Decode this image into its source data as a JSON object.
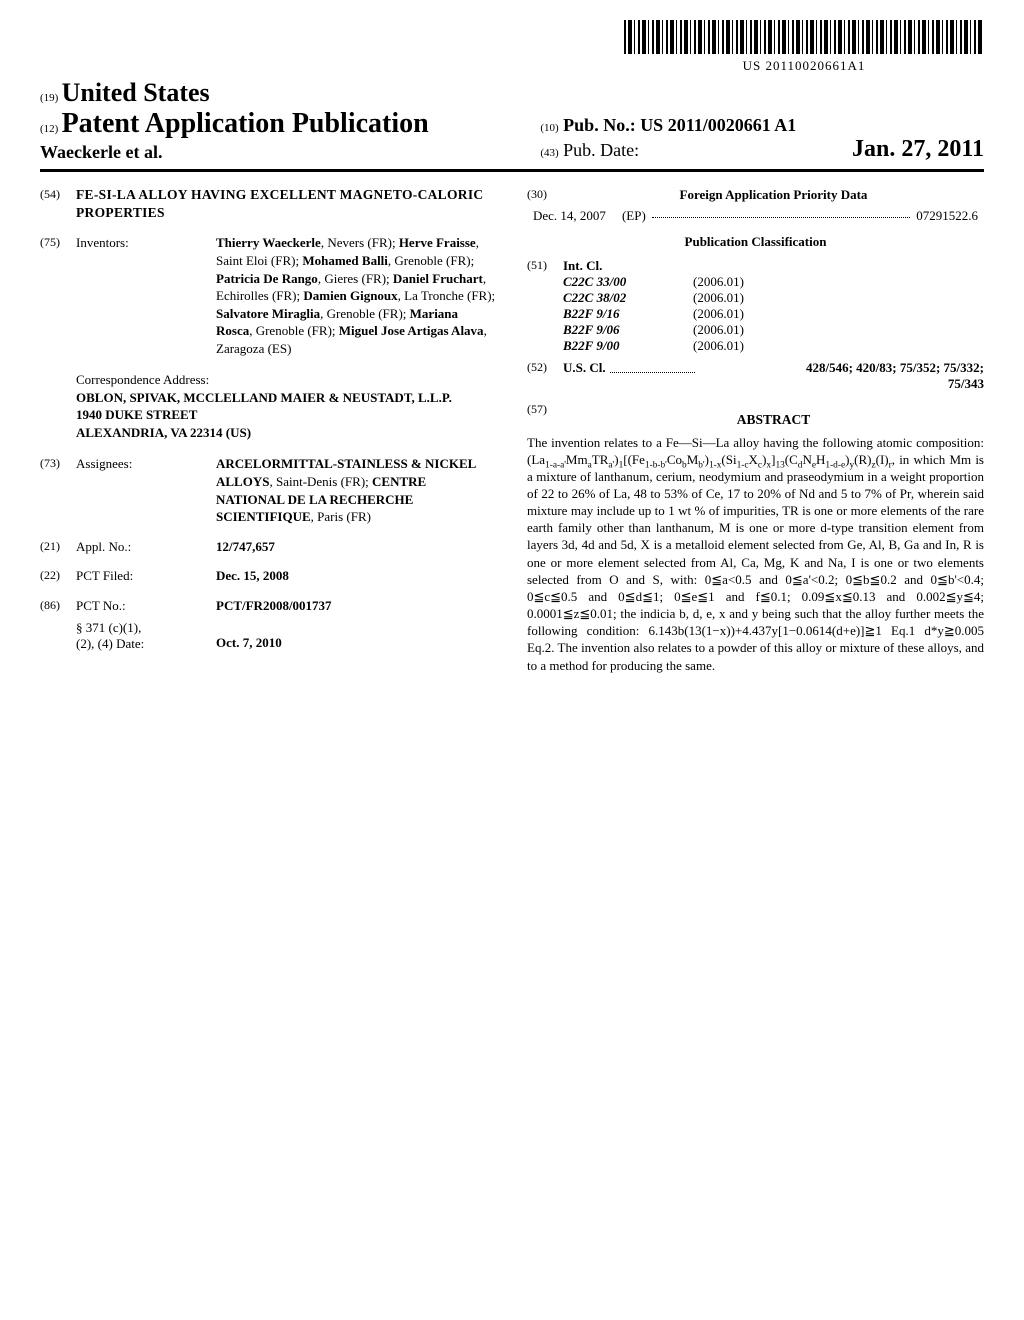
{
  "barcode_number": "US 20110020661A1",
  "header": {
    "num19": "(19)",
    "country": "United States",
    "num12": "(12)",
    "pub_type": "Patent Application Publication",
    "authors": "Waeckerle et al.",
    "num10": "(10)",
    "pubno_label": "Pub. No.:",
    "pubno": "US 2011/0020661 A1",
    "num43": "(43)",
    "pubdate_label": "Pub. Date:",
    "pubdate": "Jan. 27, 2011"
  },
  "left": {
    "num54": "(54)",
    "title": "FE-SI-LA ALLOY HAVING EXCELLENT MAGNETO-CALORIC PROPERTIES",
    "num75": "(75)",
    "inventors_label": "Inventors:",
    "inventors": [
      {
        "name": "Thierry Waeckerle",
        "loc": ", Nevers (FR); "
      },
      {
        "name": "Herve Fraisse",
        "loc": ", Saint Eloi (FR); "
      },
      {
        "name": "Mohamed Balli",
        "loc": ", Grenoble (FR); "
      },
      {
        "name": "Patricia De Rango",
        "loc": ", Gieres (FR); "
      },
      {
        "name": "Daniel Fruchart",
        "loc": ", Echirolles (FR); "
      },
      {
        "name": "Damien Gignoux",
        "loc": ", La Tronche (FR); "
      },
      {
        "name": "Salvatore Miraglia",
        "loc": ", Grenoble (FR); "
      },
      {
        "name": "Mariana Rosca",
        "loc": ", Grenoble (FR); "
      },
      {
        "name": "Miguel Jose Artigas Alava",
        "loc": ", Zaragoza (ES)"
      }
    ],
    "corr_label": "Correspondence Address:",
    "corr_name": "OBLON, SPIVAK, MCCLELLAND MAIER & NEUSTADT, L.L.P.",
    "corr_street": "1940 DUKE STREET",
    "corr_city": "ALEXANDRIA, VA 22314 (US)",
    "num73": "(73)",
    "assignees_label": "Assignees:",
    "assignee1": "ARCELORMITTAL-STAINLESS & NICKEL ALLOYS",
    "assignee1_loc": ", Saint-Denis (FR); ",
    "assignee2": "CENTRE NATIONAL DE LA RECHERCHE SCIENTIFIQUE",
    "assignee2_loc": ", Paris (FR)",
    "num21": "(21)",
    "appl_label": "Appl. No.:",
    "appl_no": "12/747,657",
    "num22": "(22)",
    "pct_filed_label": "PCT Filed:",
    "pct_filed": "Dec. 15, 2008",
    "num86": "(86)",
    "pct_no_label": "PCT No.:",
    "pct_no": "PCT/FR2008/001737",
    "s371_label": "§ 371 (c)(1),",
    "s371_date_label": "(2), (4) Date:",
    "s371_date": "Oct. 7, 2010"
  },
  "right": {
    "num30": "(30)",
    "foreign_title": "Foreign Application Priority Data",
    "foreign_date": "Dec. 14, 2007",
    "foreign_country": "(EP)",
    "foreign_app": "07291522.6",
    "pubclass_title": "Publication Classification",
    "num51": "(51)",
    "intcl_label": "Int. Cl.",
    "intcl": [
      {
        "code": "C22C 33/00",
        "ver": "(2006.01)"
      },
      {
        "code": "C22C 38/02",
        "ver": "(2006.01)"
      },
      {
        "code": "B22F 9/16",
        "ver": "(2006.01)"
      },
      {
        "code": "B22F 9/06",
        "ver": "(2006.01)"
      },
      {
        "code": "B22F 9/00",
        "ver": "(2006.01)"
      }
    ],
    "num52": "(52)",
    "uscl_label": "U.S. Cl.",
    "uscl_codes": "428/546; 420/83; 75/352; 75/332;",
    "uscl_codes2": "75/343",
    "num57": "(57)",
    "abstract_label": "ABSTRACT"
  },
  "abstract_html": "The invention relates to a Fe—Si—La alloy having the following atomic composition: (La<sub>1-a-a'</sub>Mm<sub>a</sub>TR<sub>a'</sub>)<sub>1</sub>[(Fe<sub>1-b-b'</sub>Co<sub>b</sub>M<sub>b'</sub>)<sub>1-x</sub>(Si<sub>1-c</sub>X<sub>c</sub>)<sub>x</sub>]<sub>13</sub>(C<sub>d</sub>N<sub>e</sub>H<sub>1-d-e</sub>)<sub>y</sub>(R)<sub>z</sub>(I)<sub>r</sub>, in which Mm is a mixture of lanthanum, cerium, neodymium and praseodymium in a weight proportion of 22 to 26% of La, 48 to 53% of Ce, 17 to 20% of Nd and 5 to 7% of Pr, wherein said mixture may include up to 1 wt % of impurities, TR is one or more elements of the rare earth family other than lanthanum, M is one or more d-type transition element from layers 3d, 4d and 5d, X is a metalloid element selected from Ge, Al, B, Ga and In, R is one or more element selected from Al, Ca, Mg, K and Na, I is one or two elements selected from O and S, with: 0≦a&lt;0.5 and 0≦a'&lt;0.2; 0≦b≦0.2 and 0≦b'&lt;0.4; 0≦c≦0.5 and 0≦d≦1; 0≦e≦1 and f≦0.1; 0.09≦x≦0.13 and 0.002≦y≦4; 0.0001≦z≦0.01; the indicia b, d, e, x and y being such that the alloy further meets the following condition: 6.143b(13(1−x))+4.437y[1−0.0614(d+e)]≧1 Eq.1 d*y≧0.005 Eq.2. The invention also relates to a powder of this alloy or mixture of these alloys, and to a method for producing the same."
}
